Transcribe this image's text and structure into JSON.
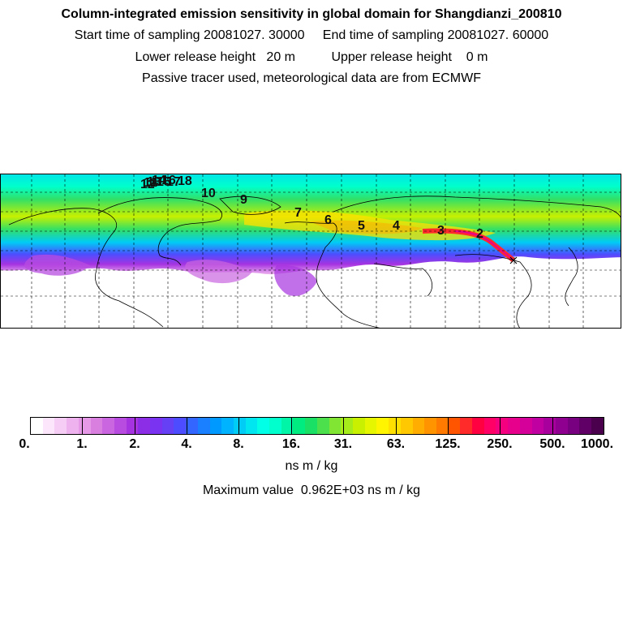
{
  "header": {
    "title": "Column-integrated emission sensitivity in global domain for Shangdianzi_200810",
    "line1": "Start time of sampling 20081027. 30000     End time of sampling 20081027. 60000",
    "line2": "Lower release height   20 m          Upper release height    0 m",
    "line3": "Passive tracer used, meteorological data are from ECMWF"
  },
  "map": {
    "day_markers": [
      "2",
      "3",
      "4",
      "5",
      "6",
      "7",
      "9",
      "10",
      "18",
      "12",
      "13",
      "14",
      "15",
      "16",
      "17",
      "11"
    ]
  },
  "colorbar": {
    "tick_labels": [
      "0.",
      "1.",
      "2.",
      "4.",
      "8.",
      "16.",
      "31.",
      "63.",
      "125.",
      "250.",
      "500.",
      "1000."
    ],
    "colors": [
      "#ffffff",
      "#fbe6fb",
      "#f5cdf5",
      "#eeb3ee",
      "#e699e6",
      "#d97fdf",
      "#c966e0",
      "#b84ce0",
      "#a633e0",
      "#8c2ee6",
      "#7a33f0",
      "#6640f5",
      "#4d4dff",
      "#3366ff",
      "#1a80ff",
      "#0099ff",
      "#00b3ff",
      "#00ccf5",
      "#00e6f0",
      "#00ffe6",
      "#00ffcc",
      "#00f5a6",
      "#00eb80",
      "#1ae066",
      "#4de04d",
      "#80e633",
      "#a6eb1a",
      "#c8f000",
      "#e6f500",
      "#fff500",
      "#ffe000",
      "#ffc800",
      "#ffad00",
      "#ff9300",
      "#ff7a00",
      "#ff5500",
      "#ff2b2b",
      "#ff0040",
      "#ff0066",
      "#f5007f",
      "#e6008c",
      "#d40099",
      "#c000a0",
      "#a8009c",
      "#900090",
      "#780080",
      "#600066",
      "#4a004d"
    ],
    "units": "ns m / kg",
    "max_text": "Maximum value  0.962E+03 ns m / kg"
  }
}
